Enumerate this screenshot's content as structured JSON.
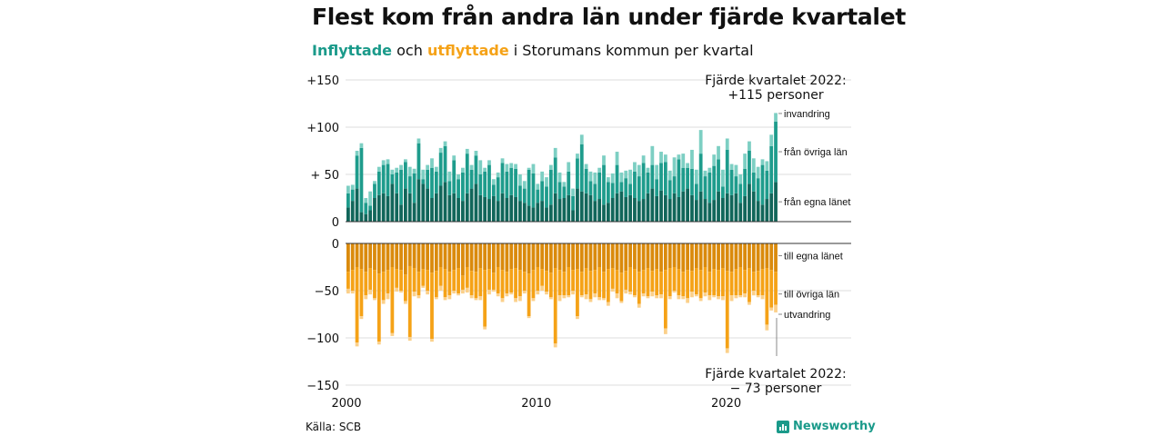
{
  "title": "Flest kom från andra län under fjärde kvartalet",
  "subtitle": {
    "inflytt": "Inflyttade",
    "och": " och ",
    "utflytt": "utflyttade",
    "rest": " i Storumans kommun per kvartal"
  },
  "source": "Källa: SCB",
  "brand": "Newsworthy",
  "colors": {
    "inflytt_egna": "#11665a",
    "inflytt_ovriga": "#1e9c8c",
    "inflytt_invandring": "#7dcfc3",
    "utflytt_egna": "#da8a0c",
    "utflytt_ovriga": "#f5a217",
    "utflytt_utvandring": "#fbd08a"
  },
  "chart_data": {
    "type": "bar",
    "stacked": true,
    "x_label_years": [
      2000,
      2010,
      2020
    ],
    "x_range": [
      2000,
      2022.75
    ],
    "upper_panel": {
      "ylim": [
        0,
        150
      ],
      "yticks": [
        0,
        50,
        100,
        150
      ],
      "ytick_labels": [
        "0",
        "+ 50",
        "+100",
        "+150"
      ],
      "series_names": [
        "från egna länet",
        "från övriga län",
        "invandring"
      ],
      "annotation": "Fjärde kvartalet 2022:\n+115 personer"
    },
    "lower_panel": {
      "ylim": [
        -150,
        0
      ],
      "yticks": [
        0,
        -50,
        -100,
        -150
      ],
      "ytick_labels": [
        "0",
        "−50",
        "−100",
        "−150"
      ],
      "series_names": [
        "till egna länet",
        "till övriga län",
        "utvandring"
      ],
      "annotation": "Fjärde kvartalet 2022:\n− 73 personer"
    },
    "inflytt_egna": [
      15,
      22,
      35,
      10,
      8,
      12,
      25,
      28,
      30,
      27,
      40,
      30,
      18,
      35,
      30,
      20,
      45,
      40,
      35,
      25,
      30,
      38,
      42,
      28,
      30,
      25,
      22,
      30,
      35,
      40,
      28,
      26,
      24,
      27,
      22,
      30,
      25,
      28,
      26,
      22,
      20,
      17,
      15,
      20,
      22,
      15,
      18,
      30,
      24,
      25,
      28,
      12,
      35,
      32,
      30,
      28,
      22,
      24,
      18,
      20,
      25,
      30,
      32,
      26,
      28,
      25,
      22,
      24,
      30,
      35,
      27,
      33,
      28,
      24,
      30,
      26,
      32,
      35,
      28,
      23,
      32,
      24,
      20,
      23,
      32,
      25,
      30,
      28,
      30,
      20,
      27,
      40,
      32,
      22,
      18,
      24,
      30,
      42
    ],
    "inflytt_ovriga": [
      15,
      12,
      35,
      68,
      12,
      5,
      15,
      25,
      30,
      34,
      10,
      22,
      37,
      28,
      18,
      31,
      38,
      5,
      20,
      32,
      23,
      35,
      38,
      15,
      35,
      20,
      30,
      42,
      20,
      30,
      22,
      27,
      36,
      12,
      25,
      32,
      28,
      29,
      30,
      16,
      15,
      38,
      36,
      14,
      21,
      22,
      37,
      38,
      18,
      12,
      25,
      15,
      32,
      50,
      26,
      15,
      18,
      28,
      42,
      22,
      16,
      30,
      10,
      20,
      12,
      28,
      26,
      38,
      22,
      25,
      18,
      29,
      35,
      20,
      18,
      40,
      25,
      22,
      28,
      17,
      40,
      24,
      32,
      36,
      34,
      12,
      46,
      27,
      18,
      20,
      29,
      35,
      20,
      24,
      42,
      30,
      50,
      64
    ],
    "inflytt_invandring": [
      8,
      5,
      5,
      5,
      5,
      15,
      3,
      5,
      5,
      5,
      5,
      5,
      5,
      3,
      10,
      5,
      5,
      10,
      5,
      10,
      5,
      5,
      5,
      10,
      5,
      5,
      5,
      5,
      5,
      5,
      15,
      4,
      5,
      6,
      5,
      5,
      8,
      5,
      5,
      12,
      8,
      2,
      10,
      6,
      10,
      10,
      5,
      10,
      10,
      5,
      10,
      8,
      5,
      10,
      5,
      10,
      12,
      5,
      10,
      5,
      10,
      14,
      10,
      8,
      15,
      10,
      12,
      8,
      5,
      20,
      15,
      12,
      8,
      10,
      20,
      5,
      15,
      5,
      20,
      15,
      25,
      6,
      5,
      12,
      14,
      18,
      12,
      6,
      12,
      10,
      16,
      10,
      15,
      12,
      6,
      10,
      12,
      9
    ],
    "utflytt_egna": [
      30,
      28,
      25,
      27,
      30,
      26,
      28,
      32,
      30,
      28,
      25,
      27,
      28,
      33,
      24,
      26,
      30,
      27,
      28,
      31,
      29,
      25,
      27,
      30,
      28,
      26,
      34,
      25,
      29,
      30,
      26,
      28,
      27,
      31,
      25,
      28,
      30,
      27,
      26,
      28,
      30,
      32,
      28,
      25,
      27,
      29,
      31,
      26,
      28,
      30,
      25,
      28,
      27,
      30,
      26,
      29,
      28,
      25,
      30,
      27,
      26,
      28,
      31,
      29,
      25,
      27,
      30,
      28,
      26,
      29,
      27,
      30,
      28,
      26,
      25,
      27,
      30,
      28,
      29,
      26,
      28,
      25,
      30,
      27,
      28,
      26,
      29,
      30,
      27,
      25,
      28,
      26,
      30,
      29,
      27,
      26,
      28,
      30
    ],
    "utflytt_ovriga": [
      18,
      22,
      80,
      50,
      25,
      23,
      30,
      72,
      30,
      25,
      70,
      20,
      22,
      28,
      75,
      25,
      25,
      18,
      22,
      70,
      28,
      20,
      30,
      25,
      22,
      27,
      15,
      22,
      26,
      28,
      30,
      60,
      22,
      18,
      28,
      30,
      23,
      25,
      32,
      28,
      20,
      45,
      30,
      25,
      18,
      22,
      26,
      80,
      27,
      25,
      30,
      22,
      50,
      25,
      28,
      30,
      25,
      32,
      28,
      35,
      22,
      25,
      30,
      20,
      26,
      28,
      34,
      25,
      30,
      22,
      28,
      24,
      62,
      30,
      25,
      28,
      26,
      30,
      22,
      28,
      30,
      27,
      25,
      28,
      28,
      30,
      82,
      25,
      28,
      30,
      25,
      36,
      20,
      26,
      28,
      60,
      40,
      35
    ],
    "utflytt_utvandring": [
      5,
      3,
      4,
      3,
      4,
      5,
      2,
      3,
      4,
      6,
      3,
      4,
      2,
      3,
      4,
      5,
      3,
      2,
      4,
      3,
      2,
      5,
      3,
      4,
      3,
      2,
      4,
      5,
      3,
      2,
      4,
      3,
      5,
      2,
      3,
      4,
      3,
      2,
      4,
      5,
      3,
      2,
      3,
      4,
      5,
      3,
      2,
      4,
      6,
      3,
      2,
      4,
      3,
      2,
      5,
      3,
      4,
      3,
      2,
      4,
      3,
      5,
      2,
      4,
      3,
      2,
      4,
      3,
      2,
      5,
      3,
      4,
      6,
      3,
      2,
      4,
      3,
      5,
      6,
      2,
      3,
      4,
      5,
      2,
      3,
      4,
      5,
      6,
      3,
      2,
      4,
      3,
      5,
      2,
      4,
      6,
      3,
      8
    ]
  }
}
